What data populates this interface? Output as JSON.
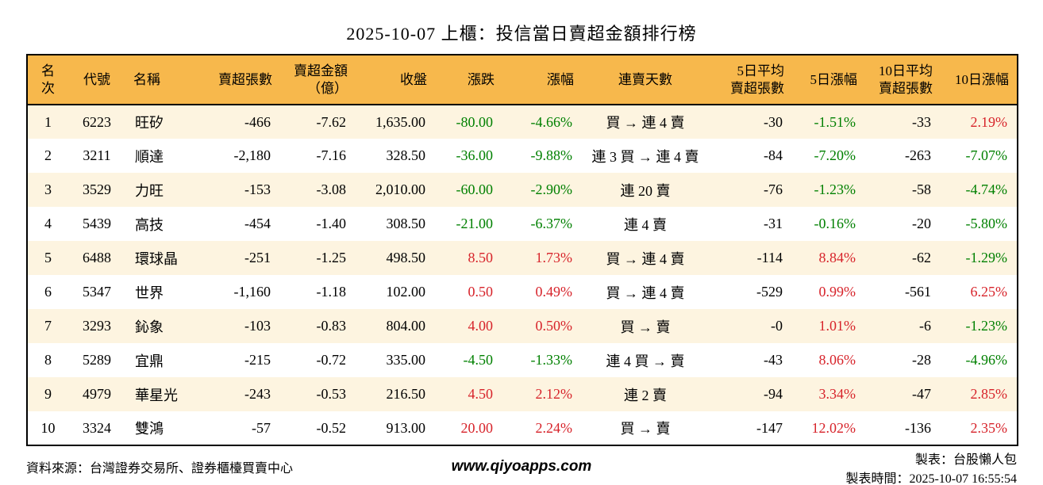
{
  "title": "2025-10-07 上櫃：投信當日賣超金額排行榜",
  "colors": {
    "up": "#d7232a",
    "down": "#008000",
    "header_bg": "#f7b84c",
    "row_alt_bg": "#fdf4e0",
    "border": "#000000"
  },
  "chart_data": {
    "type": "table",
    "columns": [
      {
        "key": "rank",
        "label": "名次",
        "align": "center"
      },
      {
        "key": "code",
        "label": "代號",
        "align": "center"
      },
      {
        "key": "name",
        "label": "名稱",
        "align": "left"
      },
      {
        "key": "sell-volume",
        "label": "賣超張數",
        "align": "right"
      },
      {
        "key": "sell-amount",
        "label": "賣超金額\n（億）",
        "align": "right"
      },
      {
        "key": "close",
        "label": "收盤",
        "align": "right"
      },
      {
        "key": "change",
        "label": "漲跌",
        "align": "right"
      },
      {
        "key": "change-pct",
        "label": "漲幅",
        "align": "right"
      },
      {
        "key": "streak",
        "label": "連賣天數",
        "align": "center"
      },
      {
        "key": "avg5-volume",
        "label": "5日平均\n賣超張數",
        "align": "right"
      },
      {
        "key": "pct5",
        "label": "5日漲幅",
        "align": "right"
      },
      {
        "key": "avg10-volume",
        "label": "10日平均\n賣超張數",
        "align": "right"
      },
      {
        "key": "pct10",
        "label": "10日漲幅",
        "align": "right"
      }
    ],
    "rows": [
      {
        "cells": [
          "1",
          "6223",
          "旺矽",
          "-466",
          "-7.62",
          "1,635.00",
          "-80.00",
          "-4.66%",
          "買 → 連 4 賣",
          "-30",
          "-1.51%",
          "-33",
          "2.19%"
        ],
        "tones": [
          null,
          null,
          null,
          null,
          null,
          null,
          "down",
          "down",
          null,
          null,
          "down",
          null,
          "up"
        ]
      },
      {
        "cells": [
          "2",
          "3211",
          "順達",
          "-2,180",
          "-7.16",
          "328.50",
          "-36.00",
          "-9.88%",
          "連 3 買 → 連 4 賣",
          "-84",
          "-7.20%",
          "-263",
          "-7.07%"
        ],
        "tones": [
          null,
          null,
          null,
          null,
          null,
          null,
          "down",
          "down",
          null,
          null,
          "down",
          null,
          "down"
        ]
      },
      {
        "cells": [
          "3",
          "3529",
          "力旺",
          "-153",
          "-3.08",
          "2,010.00",
          "-60.00",
          "-2.90%",
          "連 20 賣",
          "-76",
          "-1.23%",
          "-58",
          "-4.74%"
        ],
        "tones": [
          null,
          null,
          null,
          null,
          null,
          null,
          "down",
          "down",
          null,
          null,
          "down",
          null,
          "down"
        ]
      },
      {
        "cells": [
          "4",
          "5439",
          "高技",
          "-454",
          "-1.40",
          "308.50",
          "-21.00",
          "-6.37%",
          "連 4 賣",
          "-31",
          "-0.16%",
          "-20",
          "-5.80%"
        ],
        "tones": [
          null,
          null,
          null,
          null,
          null,
          null,
          "down",
          "down",
          null,
          null,
          "down",
          null,
          "down"
        ]
      },
      {
        "cells": [
          "5",
          "6488",
          "環球晶",
          "-251",
          "-1.25",
          "498.50",
          "8.50",
          "1.73%",
          "買 → 連 4 賣",
          "-114",
          "8.84%",
          "-62",
          "-1.29%"
        ],
        "tones": [
          null,
          null,
          null,
          null,
          null,
          null,
          "up",
          "up",
          null,
          null,
          "up",
          null,
          "down"
        ]
      },
      {
        "cells": [
          "6",
          "5347",
          "世界",
          "-1,160",
          "-1.18",
          "102.00",
          "0.50",
          "0.49%",
          "買 → 連 4 賣",
          "-529",
          "0.99%",
          "-561",
          "6.25%"
        ],
        "tones": [
          null,
          null,
          null,
          null,
          null,
          null,
          "up",
          "up",
          null,
          null,
          "up",
          null,
          "up"
        ]
      },
      {
        "cells": [
          "7",
          "3293",
          "鈊象",
          "-103",
          "-0.83",
          "804.00",
          "4.00",
          "0.50%",
          "買 → 賣",
          "-0",
          "1.01%",
          "-6",
          "-1.23%"
        ],
        "tones": [
          null,
          null,
          null,
          null,
          null,
          null,
          "up",
          "up",
          null,
          null,
          "up",
          null,
          "down"
        ]
      },
      {
        "cells": [
          "8",
          "5289",
          "宜鼎",
          "-215",
          "-0.72",
          "335.00",
          "-4.50",
          "-1.33%",
          "連 4 買 → 賣",
          "-43",
          "8.06%",
          "-28",
          "-4.96%"
        ],
        "tones": [
          null,
          null,
          null,
          null,
          null,
          null,
          "down",
          "down",
          null,
          null,
          "up",
          null,
          "down"
        ]
      },
      {
        "cells": [
          "9",
          "4979",
          "華星光",
          "-243",
          "-0.53",
          "216.50",
          "4.50",
          "2.12%",
          "連 2 賣",
          "-94",
          "3.34%",
          "-47",
          "2.85%"
        ],
        "tones": [
          null,
          null,
          null,
          null,
          null,
          null,
          "up",
          "up",
          null,
          null,
          "up",
          null,
          "up"
        ]
      },
      {
        "cells": [
          "10",
          "3324",
          "雙鴻",
          "-57",
          "-0.52",
          "913.00",
          "20.00",
          "2.24%",
          "買 → 賣",
          "-147",
          "12.02%",
          "-136",
          "2.35%"
        ],
        "tones": [
          null,
          null,
          null,
          null,
          null,
          null,
          "up",
          "up",
          null,
          null,
          "up",
          null,
          "up"
        ]
      }
    ]
  },
  "footer": {
    "source": "資料來源：台灣證券交易所、證券櫃檯買賣中心",
    "website": "www.qiyoapps.com",
    "author": "製表：台股懶人包",
    "timestamp": "製表時間：2025-10-07 16:55:54"
  }
}
